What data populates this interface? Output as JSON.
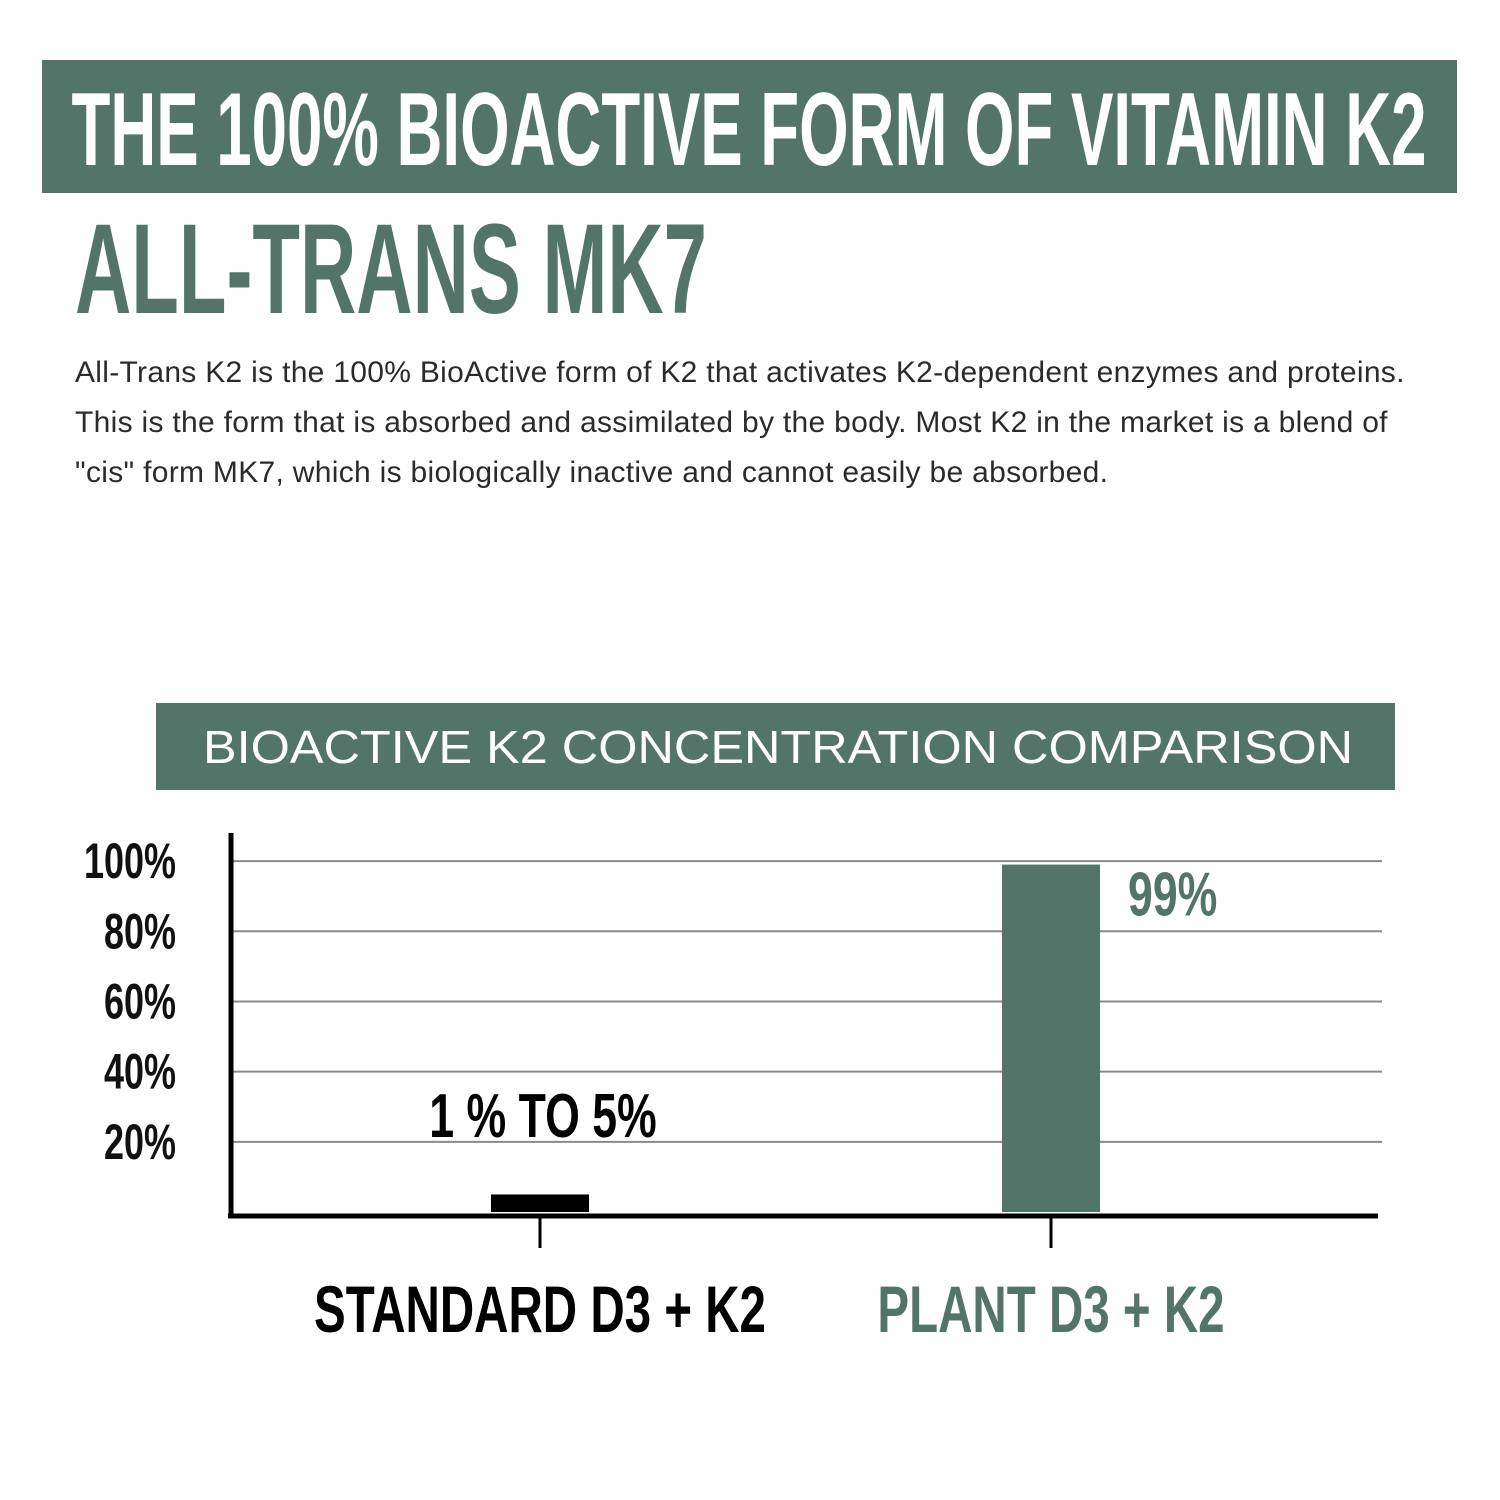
{
  "header": {
    "title": "THE 100% BIOACTIVE FORM OF VITAMIN K2",
    "subtitle": "ALL-TRANS MK7",
    "description": "All-Trans K2 is the 100% BioActive form of K2 that activates K2-dependent enzymes and proteins. This is the form that is absorbed and assimilated by the body. Most K2 in the market is a blend of \"cis\" form MK7, which is biologically inactive and cannot easily be absorbed."
  },
  "chart_data": {
    "type": "bar",
    "title": "BIOACTIVE K2 CONCENTRATION COMPARISON",
    "categories": [
      "STANDARD D3 + K2",
      "PLANT D3 + K2"
    ],
    "values": [
      5,
      99
    ],
    "value_labels": [
      "1 % TO 5%",
      "99%"
    ],
    "colors": [
      "#000000",
      "#537569"
    ],
    "ylim": [
      0,
      108
    ],
    "yticks": [
      {
        "value": 20,
        "label": "20%"
      },
      {
        "value": 40,
        "label": "40%"
      },
      {
        "value": 60,
        "label": "60%"
      },
      {
        "value": 80,
        "label": "80%"
      },
      {
        "value": 100,
        "label": "100%"
      }
    ],
    "grid": true
  }
}
